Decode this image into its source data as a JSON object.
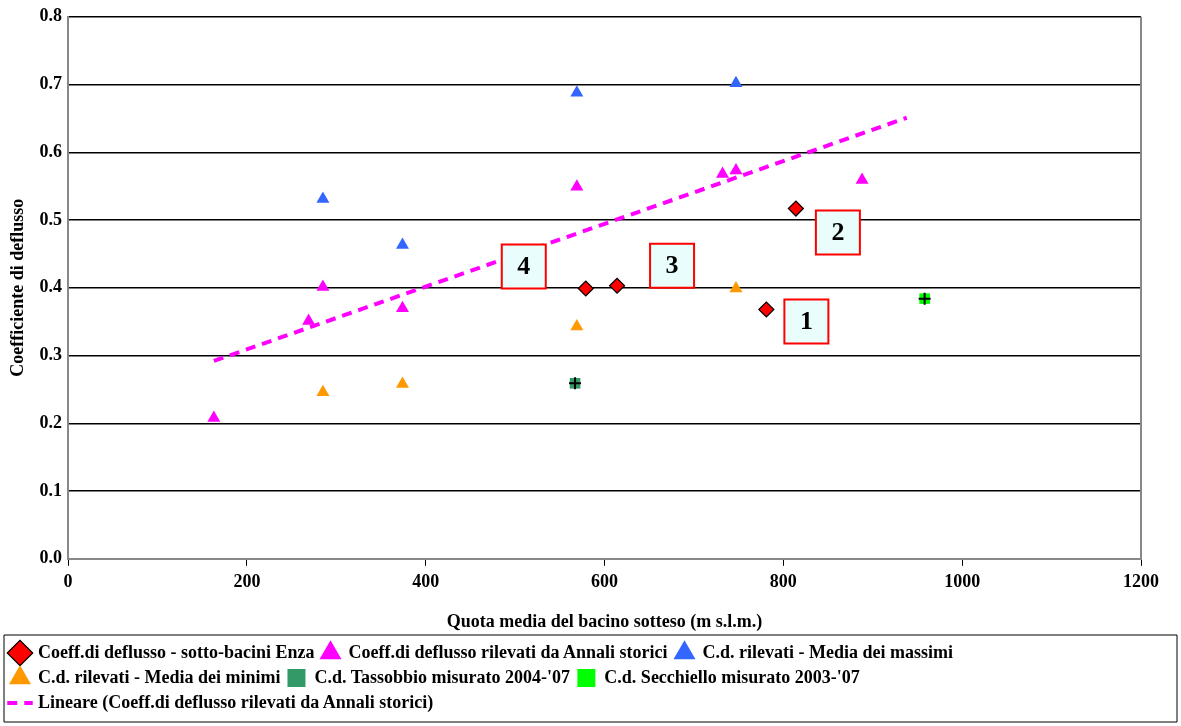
{
  "chart_data": {
    "type": "scatter",
    "xlabel": "Quota media del bacino sotteso (m s.l.m.)",
    "ylabel": "Coefficiente di deflusso",
    "xlim": [
      0,
      1200
    ],
    "xticks": [
      0,
      200,
      400,
      600,
      800,
      1000,
      1200
    ],
    "ylim": [
      0,
      0.8
    ],
    "yticks": [
      {
        "value": 0,
        "label": "0.0"
      },
      0.1,
      0.2,
      0.3,
      0.4,
      0.5,
      0.6,
      0.7,
      0.8
    ],
    "grid": "y",
    "legend": "bottom",
    "series": [
      {
        "name": "Coeff.di deflusso - sotto-bacini Enza",
        "color": "#ff0000",
        "marker": "diamond",
        "x": [
          579,
          614,
          781,
          814
        ],
        "values": [
          0.399,
          0.403,
          0.368,
          0.517
        ]
      },
      {
        "name": "Coeff.di deflusso rilevati da Annali storici",
        "color": "#ff00ff",
        "marker": "triangle",
        "x": [
          163,
          269,
          285,
          374,
          569,
          732,
          747,
          888
        ],
        "values": [
          0.208,
          0.351,
          0.401,
          0.37,
          0.549,
          0.568,
          0.573,
          0.559
        ]
      },
      {
        "name": "C.d. rilevati - Media dei massimi",
        "color": "#3366ff",
        "marker": "triangle",
        "x": [
          285,
          374,
          569,
          747
        ],
        "values": [
          0.531,
          0.463,
          0.688,
          0.702
        ]
      },
      {
        "name": "C.d. rilevati - Media dei minimi",
        "color": "#ff9900",
        "marker": "triangle",
        "x": [
          285,
          374,
          569,
          747
        ],
        "values": [
          0.246,
          0.258,
          0.343,
          0.399
        ]
      },
      {
        "name": "C.d. Tassobbio misurato 2004-'07",
        "color": "#339966",
        "marker": "square",
        "x": [
          567
        ],
        "values": [
          0.259
        ]
      },
      {
        "name": "C.d. Secchiello misurato 2003-'07",
        "color": "#00ff00",
        "marker": "square",
        "x": [
          958
        ],
        "values": [
          0.384
        ]
      },
      {
        "name": "Lineare (Coeff.di deflusso rilevati da Annali storici)",
        "type": "line",
        "color": "#ff00ff",
        "marker": "none",
        "line_style": "dashed",
        "x": [
          163,
          938
        ],
        "values": [
          0.292,
          0.651
        ]
      }
    ],
    "annotations": [
      {
        "text": "1",
        "x": 781,
        "y": 0.368
      },
      {
        "text": "2",
        "x": 814,
        "y": 0.517
      },
      {
        "text": "3",
        "x": 614,
        "y": 0.403
      },
      {
        "text": "4",
        "x": 579,
        "y": 0.399
      }
    ]
  }
}
